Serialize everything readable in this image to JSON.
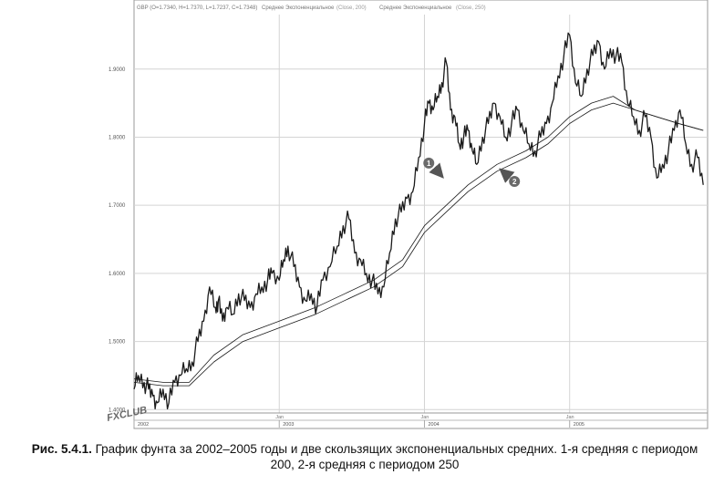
{
  "chart_data": {
    "type": "line",
    "header": {
      "symbol_ohlc": "GBP (O=1.7340, H=1.7370, L=1.7237, C=1.7348)",
      "ma1_label": "Среднее Экспоненциальное",
      "ma1_params": "(Close, 200)",
      "ma2_label": "Среднее Экспоненциальное",
      "ma2_params": "(Close, 250)"
    },
    "ylim": [
      1.395,
      1.98
    ],
    "y_ticks": [
      {
        "value": 1.4,
        "label": "1.4000"
      },
      {
        "value": 1.5,
        "label": "1.5000"
      },
      {
        "value": 1.6,
        "label": "1.6000"
      },
      {
        "value": 1.7,
        "label": "1.7000"
      },
      {
        "value": 1.8,
        "label": "1.8000"
      },
      {
        "value": 1.9,
        "label": "1.9000"
      }
    ],
    "xlim": [
      2002.0,
      2005.95
    ],
    "x_month_ticks": [
      {
        "x": 2003.0,
        "label": "Jan"
      },
      {
        "x": 2004.0,
        "label": "Jan"
      },
      {
        "x": 2005.0,
        "label": "Jan"
      }
    ],
    "x_year_ticks": [
      {
        "x": 2002.0,
        "label": "2002"
      },
      {
        "x": 2003.0,
        "label": "2003"
      },
      {
        "x": 2004.0,
        "label": "2004"
      },
      {
        "x": 2005.0,
        "label": "2005"
      }
    ],
    "grid": true,
    "series": [
      {
        "role": "price",
        "color": "#1a1a1a",
        "x": [
          2002.0,
          2002.03,
          2002.07,
          2002.1,
          2002.13,
          2002.16,
          2002.2,
          2002.24,
          2002.28,
          2002.32,
          2002.36,
          2002.4,
          2002.44,
          2002.48,
          2002.52,
          2002.56,
          2002.58,
          2002.61,
          2002.64,
          2002.68,
          2002.72,
          2002.76,
          2002.8,
          2002.84,
          2002.88,
          2002.92,
          2002.95,
          2003.0,
          2003.03,
          2003.06,
          2003.1,
          2003.14,
          2003.18,
          2003.22,
          2003.26,
          2003.3,
          2003.35,
          2003.4,
          2003.44,
          2003.48,
          2003.52,
          2003.56,
          2003.6,
          2003.64,
          2003.68,
          2003.72,
          2003.76,
          2003.8,
          2003.84,
          2003.88,
          2003.92,
          2003.96,
          2004.0,
          2004.03,
          2004.06,
          2004.09,
          2004.12,
          2004.15,
          2004.18,
          2004.21,
          2004.24,
          2004.27,
          2004.3,
          2004.33,
          2004.36,
          2004.4,
          2004.44,
          2004.48,
          2004.52,
          2004.56,
          2004.6,
          2004.64,
          2004.68,
          2004.72,
          2004.76,
          2004.8,
          2004.84,
          2004.88,
          2004.92,
          2004.96,
          2005.0,
          2005.04,
          2005.08,
          2005.12,
          2005.16,
          2005.2,
          2005.24,
          2005.28,
          2005.32,
          2005.36,
          2005.4,
          2005.44,
          2005.48,
          2005.52,
          2005.56,
          2005.6,
          2005.64,
          2005.68,
          2005.72,
          2005.76,
          2005.8,
          2005.84,
          2005.88,
          2005.92
        ],
        "values": [
          1.43,
          1.45,
          1.44,
          1.43,
          1.42,
          1.41,
          1.43,
          1.41,
          1.44,
          1.45,
          1.46,
          1.47,
          1.5,
          1.53,
          1.58,
          1.55,
          1.56,
          1.53,
          1.55,
          1.54,
          1.57,
          1.56,
          1.55,
          1.57,
          1.58,
          1.59,
          1.6,
          1.59,
          1.62,
          1.64,
          1.61,
          1.58,
          1.56,
          1.57,
          1.55,
          1.59,
          1.61,
          1.64,
          1.67,
          1.68,
          1.63,
          1.62,
          1.6,
          1.59,
          1.57,
          1.58,
          1.63,
          1.68,
          1.69,
          1.71,
          1.72,
          1.77,
          1.82,
          1.85,
          1.84,
          1.86,
          1.88,
          1.91,
          1.84,
          1.83,
          1.79,
          1.8,
          1.81,
          1.78,
          1.76,
          1.8,
          1.82,
          1.85,
          1.83,
          1.8,
          1.82,
          1.84,
          1.81,
          1.79,
          1.78,
          1.8,
          1.82,
          1.85,
          1.89,
          1.92,
          1.95,
          1.88,
          1.86,
          1.9,
          1.92,
          1.94,
          1.9,
          1.93,
          1.92,
          1.91,
          1.85,
          1.83,
          1.81,
          1.83,
          1.8,
          1.74,
          1.76,
          1.78,
          1.81,
          1.84,
          1.79,
          1.76,
          1.77,
          1.73
        ]
      },
      {
        "role": "ema200",
        "color": "#1a1a1a",
        "x": [
          2002.0,
          2002.2,
          2002.38,
          2002.55,
          2002.75,
          2003.0,
          2003.25,
          2003.45,
          2003.65,
          2003.85,
          2004.0,
          2004.15,
          2004.3,
          2004.5,
          2004.7,
          2004.85,
          2005.0,
          2005.15,
          2005.3,
          2005.45,
          2005.6,
          2005.75,
          2005.92
        ],
        "values": [
          1.445,
          1.44,
          1.44,
          1.48,
          1.51,
          1.53,
          1.55,
          1.57,
          1.59,
          1.62,
          1.67,
          1.7,
          1.73,
          1.76,
          1.78,
          1.8,
          1.83,
          1.85,
          1.86,
          1.84,
          1.83,
          1.82,
          1.81
        ]
      },
      {
        "role": "ema250",
        "color": "#1a1a1a",
        "x": [
          2002.0,
          2002.2,
          2002.38,
          2002.55,
          2002.75,
          2003.0,
          2003.25,
          2003.45,
          2003.65,
          2003.85,
          2004.0,
          2004.15,
          2004.3,
          2004.5,
          2004.7,
          2004.85,
          2005.0,
          2005.15,
          2005.3,
          2005.45,
          2005.6,
          2005.75,
          2005.92
        ],
        "values": [
          1.44,
          1.435,
          1.435,
          1.47,
          1.5,
          1.52,
          1.54,
          1.56,
          1.58,
          1.61,
          1.66,
          1.69,
          1.72,
          1.75,
          1.77,
          1.79,
          1.82,
          1.84,
          1.85,
          1.84,
          1.83,
          1.82,
          1.81
        ]
      }
    ],
    "markers": [
      {
        "label": "1",
        "x": 2004.03,
        "y": 1.762
      },
      {
        "label": "2",
        "x": 2004.62,
        "y": 1.735
      }
    ],
    "logo_text": "FXCLUB"
  },
  "caption": {
    "prefix": "Рис. 5.4.1.",
    "text": "График фунта за 2002–2005 годы и две скользящих экспоненциальных средних. 1-я средняя с периодом 200, 2-я средняя с периодом 250"
  }
}
